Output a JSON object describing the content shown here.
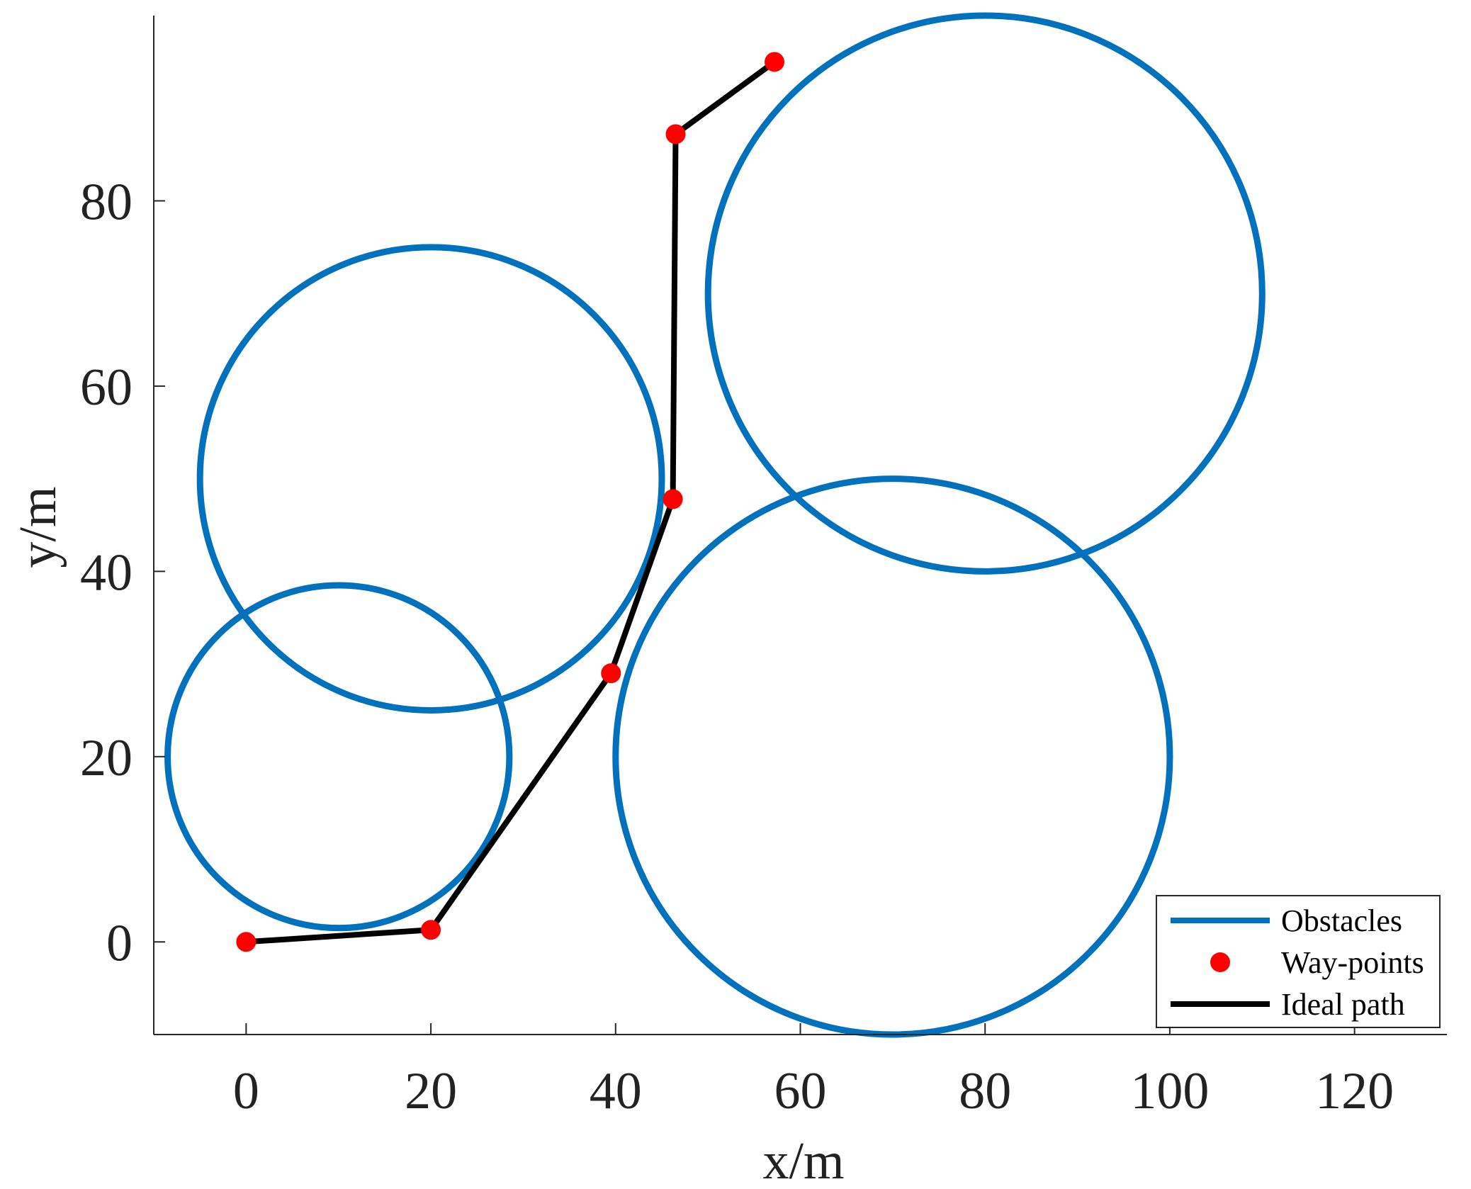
{
  "chart_data": {
    "type": "scatter",
    "xlabel": "x/m",
    "ylabel": "y/m",
    "xlim": [
      -10,
      130
    ],
    "ylim": [
      -10,
      100
    ],
    "x_ticks": [
      "0",
      "20",
      "40",
      "60",
      "80",
      "100",
      "120"
    ],
    "y_ticks": [
      "0",
      "20",
      "40",
      "60",
      "80"
    ],
    "grid": false,
    "legend_position": "bottom-right",
    "colors": {
      "obstacles": "#0072BD",
      "waypoints": "#FF0000",
      "path": "#000000"
    },
    "series": [
      {
        "name": "Obstacles",
        "kind": "circles",
        "circles": [
          {
            "cx": 10,
            "cy": 20,
            "r": 18.5
          },
          {
            "cx": 20,
            "cy": 50,
            "r": 25
          },
          {
            "cx": 70,
            "cy": 20,
            "r": 30
          },
          {
            "cx": 80,
            "cy": 70,
            "r": 30
          }
        ]
      },
      {
        "name": "Way-points",
        "kind": "points",
        "points": [
          {
            "x": 0,
            "y": 0
          },
          {
            "x": 20,
            "y": 1.3
          },
          {
            "x": 39.5,
            "y": 29
          },
          {
            "x": 46.2,
            "y": 47.8
          },
          {
            "x": 46.5,
            "y": 87.2
          },
          {
            "x": 57.2,
            "y": 95
          }
        ]
      },
      {
        "name": "Ideal path",
        "kind": "line",
        "points": [
          {
            "x": 0,
            "y": 0
          },
          {
            "x": 20,
            "y": 1.3
          },
          {
            "x": 39.5,
            "y": 29
          },
          {
            "x": 46.2,
            "y": 47.8
          },
          {
            "x": 46.5,
            "y": 87.2
          },
          {
            "x": 57.2,
            "y": 95
          }
        ]
      }
    ]
  }
}
